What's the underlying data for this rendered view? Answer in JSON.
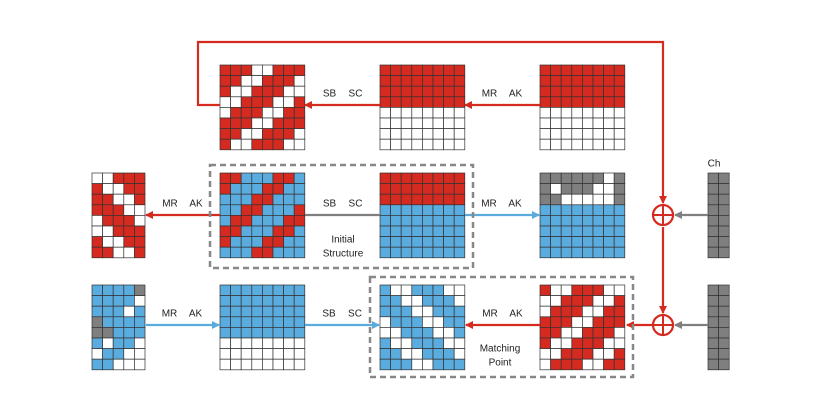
{
  "arrow_labels": [
    [
      "SB",
      "SC"
    ],
    [
      "MR",
      "AK"
    ],
    [
      "MR",
      "AK"
    ],
    [
      "SB",
      "SC"
    ],
    [
      "MR",
      "AK"
    ],
    [
      "MR",
      "AK"
    ],
    [
      "SB",
      "SC"
    ],
    [
      "MR",
      "AK"
    ]
  ],
  "boxes": [
    {
      "label": [
        "Initial",
        "Structure"
      ]
    },
    {
      "label": [
        "Matching",
        "Point"
      ]
    }
  ],
  "side_label": "Ch"
}
